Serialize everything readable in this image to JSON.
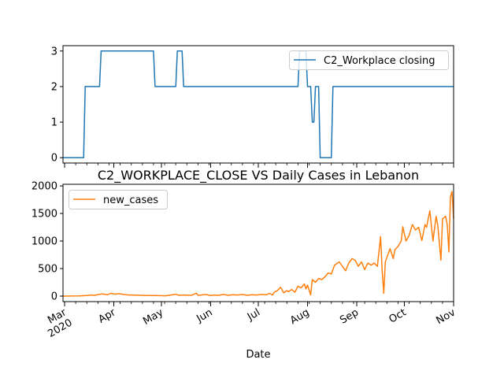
{
  "chart_data": [
    {
      "type": "line",
      "xlim": [
        "2020-02-29",
        "2020-11-01"
      ],
      "ylim": [
        -0.15,
        3.15
      ],
      "yticks": [
        0,
        1,
        2,
        3
      ],
      "ytick_labels": [
        "0",
        "1",
        "2",
        "3"
      ],
      "legend_position": "top-right",
      "series": [
        {
          "name": "C2_Workplace closing",
          "color": "#1f77b4",
          "x": [
            "2020-02-29",
            "2020-03-13",
            "2020-03-14",
            "2020-03-23",
            "2020-03-24",
            "2020-04-26",
            "2020-04-27",
            "2020-05-10",
            "2020-05-11",
            "2020-05-14",
            "2020-05-15",
            "2020-07-26",
            "2020-07-27",
            "2020-07-31",
            "2020-08-01",
            "2020-08-03",
            "2020-08-04",
            "2020-08-05",
            "2020-08-06",
            "2020-08-08",
            "2020-08-09",
            "2020-08-16",
            "2020-08-17",
            "2020-11-01"
          ],
          "y": [
            0,
            0,
            2,
            2,
            3,
            3,
            2,
            2,
            3,
            3,
            2,
            2,
            3,
            3,
            2,
            2,
            1,
            1,
            2,
            2,
            0,
            0,
            2,
            2
          ]
        }
      ]
    },
    {
      "type": "line",
      "title": "C2_WORKPLACE_CLOSE VS Daily Cases in Lebanon",
      "xlabel": "Date",
      "xlim": [
        "2020-02-29",
        "2020-11-01"
      ],
      "ylim": [
        -100,
        2030
      ],
      "yticks": [
        0,
        500,
        1000,
        1500,
        2000
      ],
      "ytick_labels": [
        "0",
        "500",
        "1000",
        "1500",
        "2000"
      ],
      "xtick_labels": [
        "Mar\n2020",
        "Apr",
        "May",
        "Jun",
        "Jul",
        "Aug",
        "Sep",
        "Oct",
        "Nov"
      ],
      "legend_position": "top-left",
      "series": [
        {
          "name": "new_cases",
          "color": "#ff7f0e",
          "x": [
            "2020-02-29",
            "2020-03-05",
            "2020-03-10",
            "2020-03-15",
            "2020-03-18",
            "2020-03-20",
            "2020-03-22",
            "2020-03-25",
            "2020-03-28",
            "2020-03-30",
            "2020-04-02",
            "2020-04-04",
            "2020-04-07",
            "2020-04-10",
            "2020-04-14",
            "2020-04-18",
            "2020-04-22",
            "2020-04-26",
            "2020-04-30",
            "2020-05-03",
            "2020-05-05",
            "2020-05-08",
            "2020-05-10",
            "2020-05-12",
            "2020-05-15",
            "2020-05-20",
            "2020-05-23",
            "2020-05-24",
            "2020-05-26",
            "2020-05-29",
            "2020-06-01",
            "2020-06-03",
            "2020-06-06",
            "2020-06-09",
            "2020-06-12",
            "2020-06-15",
            "2020-06-18",
            "2020-06-21",
            "2020-06-24",
            "2020-06-27",
            "2020-06-30",
            "2020-07-03",
            "2020-07-06",
            "2020-07-08",
            "2020-07-10",
            "2020-07-11",
            "2020-07-13",
            "2020-07-15",
            "2020-07-17",
            "2020-07-19",
            "2020-07-20",
            "2020-07-22",
            "2020-07-24",
            "2020-07-26",
            "2020-07-28",
            "2020-07-30",
            "2020-07-31",
            "2020-08-01",
            "2020-08-03",
            "2020-08-04",
            "2020-08-06",
            "2020-08-08",
            "2020-08-10",
            "2020-08-12",
            "2020-08-14",
            "2020-08-16",
            "2020-08-18",
            "2020-08-20",
            "2020-08-21",
            "2020-08-23",
            "2020-08-25",
            "2020-08-27",
            "2020-08-29",
            "2020-08-31",
            "2020-09-02",
            "2020-09-04",
            "2020-09-06",
            "2020-09-08",
            "2020-09-10",
            "2020-09-12",
            "2020-09-14",
            "2020-09-16",
            "2020-09-17",
            "2020-09-18",
            "2020-09-19",
            "2020-09-20",
            "2020-09-22",
            "2020-09-24",
            "2020-09-25",
            "2020-09-27",
            "2020-09-29",
            "2020-09-30",
            "2020-10-02",
            "2020-10-04",
            "2020-10-06",
            "2020-10-08",
            "2020-10-10",
            "2020-10-12",
            "2020-10-14",
            "2020-10-15",
            "2020-10-17",
            "2020-10-19",
            "2020-10-21",
            "2020-10-22",
            "2020-10-24",
            "2020-10-25",
            "2020-10-27",
            "2020-10-28",
            "2020-10-29",
            "2020-10-30",
            "2020-10-31",
            "2020-11-01"
          ],
          "y": [
            0,
            2,
            5,
            12,
            20,
            15,
            28,
            40,
            25,
            50,
            35,
            45,
            30,
            22,
            18,
            15,
            12,
            10,
            8,
            6,
            10,
            25,
            35,
            15,
            20,
            15,
            55,
            15,
            20,
            30,
            10,
            20,
            15,
            30,
            15,
            25,
            20,
            30,
            15,
            25,
            20,
            30,
            25,
            50,
            20,
            70,
            100,
            160,
            60,
            100,
            80,
            120,
            70,
            180,
            150,
            220,
            130,
            200,
            20,
            300,
            250,
            320,
            300,
            350,
            420,
            400,
            560,
            600,
            620,
            540,
            460,
            600,
            680,
            650,
            540,
            620,
            480,
            600,
            560,
            600,
            540,
            1080,
            460,
            50,
            620,
            700,
            860,
            680,
            840,
            900,
            1000,
            1260,
            1000,
            1100,
            1300,
            1200,
            1250,
            1010,
            1300,
            1250,
            1550,
            1000,
            1450,
            1300,
            650,
            1400,
            1450,
            1300,
            800,
            1800,
            1900,
            1400
          ]
        }
      ]
    }
  ]
}
